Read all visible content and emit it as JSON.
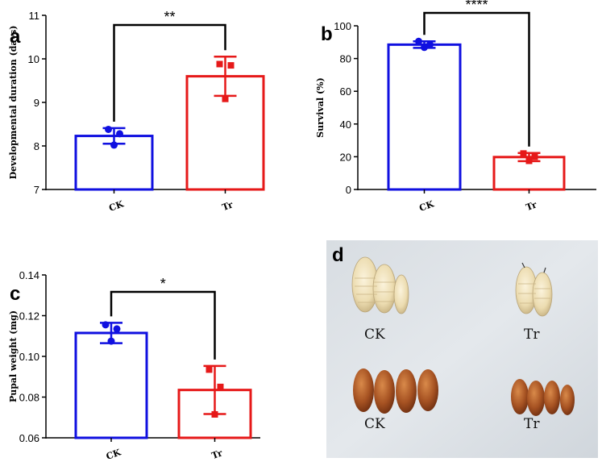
{
  "chart_data": [
    {
      "type": "bar",
      "panel": "a",
      "ylabel": "Developmental duration (days)",
      "categories": [
        "CK",
        "Tr"
      ],
      "values": [
        8.23,
        9.6
      ],
      "error": [
        0.18,
        0.45
      ],
      "points": [
        [
          8.38,
          8.28,
          8.02
        ],
        [
          9.88,
          9.85,
          9.08
        ]
      ],
      "ylim": [
        7,
        11
      ],
      "yticks": [
        7,
        8,
        9,
        10,
        11
      ],
      "significance": "**",
      "colors": [
        "#1010e0",
        "#e61919"
      ]
    },
    {
      "type": "bar",
      "panel": "b",
      "ylabel": "Survival (%)",
      "categories": [
        "CK",
        "Tr"
      ],
      "values": [
        88.5,
        19.8
      ],
      "error": [
        2.0,
        2.5
      ],
      "points": [
        [
          90.5,
          88.5,
          86.8
        ],
        [
          22.0,
          20.0,
          17.5
        ]
      ],
      "ylim": [
        0,
        100
      ],
      "yticks": [
        0,
        20,
        40,
        60,
        80,
        100
      ],
      "significance": "****",
      "colors": [
        "#1010e0",
        "#e61919"
      ]
    },
    {
      "type": "bar",
      "panel": "c",
      "ylabel": "Pupal weight (mg)",
      "categories": [
        "CK",
        "Tr"
      ],
      "values": [
        0.1115,
        0.0835
      ],
      "error": [
        0.005,
        0.0118
      ],
      "points": [
        [
          0.1155,
          0.1135,
          0.1075
        ],
        [
          0.0935,
          0.085,
          0.0715
        ]
      ],
      "ylim": [
        0.06,
        0.14
      ],
      "yticks": [
        "0.06",
        "0.08",
        "0.10",
        "0.12",
        "0.14"
      ],
      "significance": "*",
      "colors": [
        "#1010e0",
        "#e61919"
      ]
    }
  ],
  "photo": {
    "panel": "d",
    "labels": [
      "CK",
      "Tr",
      "CK",
      "Tr"
    ]
  }
}
